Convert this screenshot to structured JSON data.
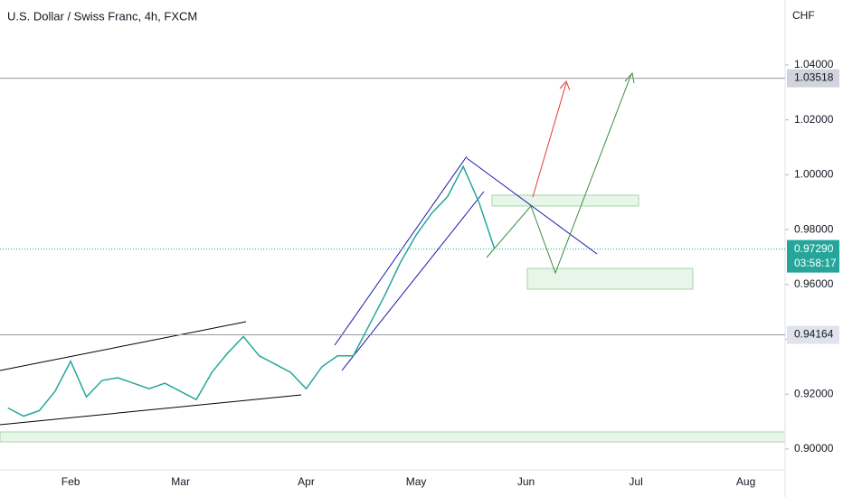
{
  "chart_data": {
    "type": "line",
    "title": "U.S. Dollar / Swiss Franc, 4h, FXCM",
    "y_axis_label": "CHF",
    "categories": [
      null,
      null,
      null,
      null,
      "Feb",
      null,
      null,
      null,
      null,
      null,
      null,
      "Mar",
      null,
      null,
      null,
      null,
      null,
      null,
      null,
      "Apr",
      null,
      null,
      null,
      null,
      null,
      null,
      "May",
      null,
      null,
      null,
      null,
      null,
      null,
      "Jun",
      null,
      null,
      null,
      null,
      null,
      null,
      "Jul",
      null,
      null,
      null,
      null,
      null,
      null,
      "Aug",
      null,
      null
    ],
    "series": [
      {
        "name": "USDCHF",
        "color": "#26a69a",
        "values": [
          0.915,
          0.912,
          0.914,
          0.921,
          0.932,
          0.919,
          0.925,
          0.926,
          0.924,
          0.922,
          0.924,
          0.921,
          0.918,
          0.928,
          0.935,
          0.941,
          0.934,
          0.931,
          0.928,
          0.922,
          0.93,
          0.934,
          0.934,
          0.945,
          0.956,
          0.968,
          0.978,
          0.986,
          0.992,
          1.003,
          0.99,
          0.9729,
          null,
          null,
          null,
          null,
          null,
          null,
          null,
          null,
          null,
          null,
          null,
          null,
          null,
          null,
          null,
          null,
          null,
          null
        ]
      }
    ],
    "ylim": [
      0.8924,
      1.0637
    ],
    "yticks": [
      {
        "value": 0.9,
        "label": "0.90000"
      },
      {
        "value": 0.92,
        "label": "0.92000"
      },
      {
        "value": 0.94,
        "label": "0.94000"
      },
      {
        "value": 0.96,
        "label": "0.96000"
      },
      {
        "value": 0.98,
        "label": "0.98000"
      },
      {
        "value": 1.0,
        "label": "1.00000"
      },
      {
        "value": 1.02,
        "label": "1.02000"
      },
      {
        "value": 1.04,
        "label": "1.04000"
      }
    ],
    "levels": [
      1.03518,
      0.94164
    ],
    "current_price": {
      "value": 0.9729,
      "label": "0.97290"
    },
    "countdown": "03:58:17",
    "grid": false
  }
}
